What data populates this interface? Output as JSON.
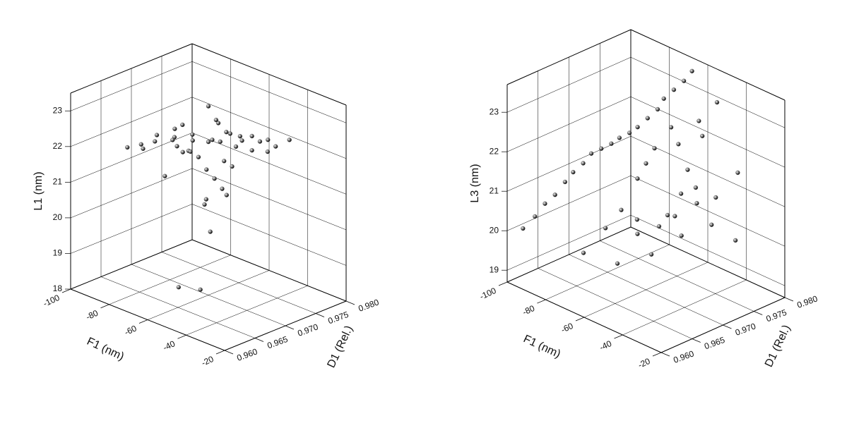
{
  "chart_data": [
    {
      "type": "scatter3d",
      "xlabel": "F1 (nm)",
      "ylabel": "D1 (Rel.)",
      "zlabel": "L1 (nm)",
      "xlim": [
        -100,
        -20
      ],
      "ylim": [
        0.96,
        0.98
      ],
      "zlim": [
        18,
        23.5
      ],
      "xticks": [
        -100,
        -80,
        -60,
        -40,
        -20
      ],
      "yticks": [
        {
          "value": 0.96,
          "label": "0.960"
        },
        {
          "value": 0.965,
          "label": "0.965"
        },
        {
          "value": 0.97,
          "label": "0.970"
        },
        {
          "value": 0.975,
          "label": "0.975"
        },
        {
          "value": 0.98,
          "label": "0.980"
        }
      ],
      "zticks": [
        18,
        19,
        20,
        21,
        22,
        23
      ],
      "color": "#555555",
      "grid": true,
      "x": [
        -60,
        -55,
        -70,
        -50,
        -65,
        -45,
        -75,
        -58,
        -62,
        -52,
        -68,
        -48,
        -72,
        -56,
        -64,
        -40,
        -80,
        -54,
        -60,
        -66,
        -50,
        -58,
        -62,
        -70,
        -44,
        -76,
        -56,
        -60,
        -64,
        -52,
        -58,
        -62,
        -55,
        -65,
        -60,
        -57,
        -63,
        -59,
        -61,
        -66,
        -53,
        -67,
        -49,
        -71,
        -57,
        -61
      ],
      "y": [
        0.97,
        0.972,
        0.968,
        0.974,
        0.966,
        0.975,
        0.964,
        0.971,
        0.969,
        0.973,
        0.967,
        0.976,
        0.965,
        0.97,
        0.968,
        0.977,
        0.963,
        0.972,
        0.971,
        0.966,
        0.974,
        0.969,
        0.97,
        0.966,
        0.976,
        0.964,
        0.971,
        0.973,
        0.967,
        0.972,
        0.97,
        0.968,
        0.971,
        0.969,
        0.97,
        0.972,
        0.968,
        0.97,
        0.969,
        0.967,
        0.973,
        0.968,
        0.975,
        0.965,
        0.971,
        0.97
      ],
      "z": [
        22.3,
        22.5,
        22.1,
        22.4,
        22.6,
        22.0,
        22.2,
        22.8,
        21.9,
        22.3,
        22.7,
        22.2,
        22.4,
        23.0,
        22.1,
        22.3,
        22.2,
        21.6,
        21.2,
        22.5,
        22.0,
        20.8,
        20.5,
        21.4,
        22.1,
        22.3,
        21.0,
        20.6,
        22.9,
        22.2,
        22.4,
        22.6,
        21.8,
        22.3,
        23.3,
        22.5,
        22.1,
        19.8,
        18.2,
        18.3,
        22.4,
        22.0,
        22.2,
        22.6,
        22.3,
        21.5
      ]
    },
    {
      "type": "scatter3d",
      "xlabel": "F1 (nm)",
      "ylabel": "D1 (Rel.)",
      "zlabel": "L3 (nm)",
      "xlim": [
        -100,
        -20
      ],
      "ylim": [
        0.96,
        0.98
      ],
      "zlim": [
        18.7,
        23.7
      ],
      "xticks": [
        -100,
        -80,
        -60,
        -40,
        -20
      ],
      "yticks": [
        {
          "value": 0.96,
          "label": "0.960"
        },
        {
          "value": 0.965,
          "label": "0.965"
        },
        {
          "value": 0.97,
          "label": "0.970"
        },
        {
          "value": 0.975,
          "label": "0.975"
        },
        {
          "value": 0.98,
          "label": "0.980"
        }
      ],
      "zticks": [
        19,
        20,
        21,
        22,
        23
      ],
      "color": "#555555",
      "grid": true,
      "x": [
        -95,
        -92,
        -90,
        -88,
        -86,
        -85,
        -83,
        -82,
        -80,
        -78,
        -77,
        -75,
        -74,
        -72,
        -70,
        -70,
        -68,
        -66,
        -65,
        -63,
        -62,
        -60,
        -58,
        -56,
        -55,
        -52,
        -50,
        -48,
        -45,
        -60,
        -55,
        -50,
        -45,
        -40,
        -65,
        -58,
        -52,
        -47,
        -43,
        -38,
        -70,
        -62,
        -54,
        -48,
        -42,
        -36
      ],
      "y": [
        0.961,
        0.962,
        0.963,
        0.964,
        0.965,
        0.966,
        0.967,
        0.968,
        0.969,
        0.97,
        0.971,
        0.972,
        0.973,
        0.974,
        0.975,
        0.976,
        0.977,
        0.978,
        0.979,
        0.975,
        0.972,
        0.97,
        0.968,
        0.974,
        0.977,
        0.979,
        0.976,
        0.973,
        0.971,
        0.966,
        0.967,
        0.969,
        0.97,
        0.972,
        0.965,
        0.968,
        0.971,
        0.974,
        0.976,
        0.978,
        0.963,
        0.966,
        0.969,
        0.972,
        0.975,
        0.977
      ],
      "z": [
        20.1,
        20.4,
        20.7,
        20.9,
        21.2,
        21.4,
        21.6,
        21.8,
        21.9,
        22.0,
        22.1,
        22.2,
        22.3,
        22.5,
        22.7,
        22.9,
        23.1,
        23.3,
        23.5,
        22.4,
        22.1,
        21.9,
        21.7,
        22.2,
        22.6,
        23.0,
        22.4,
        21.8,
        21.4,
        21.0,
        20.8,
        20.6,
        20.9,
        21.2,
        20.5,
        20.3,
        20.7,
        21.3,
        21.0,
        21.6,
        19.9,
        19.6,
        19.8,
        20.2,
        20.4,
        20.0
      ]
    }
  ]
}
